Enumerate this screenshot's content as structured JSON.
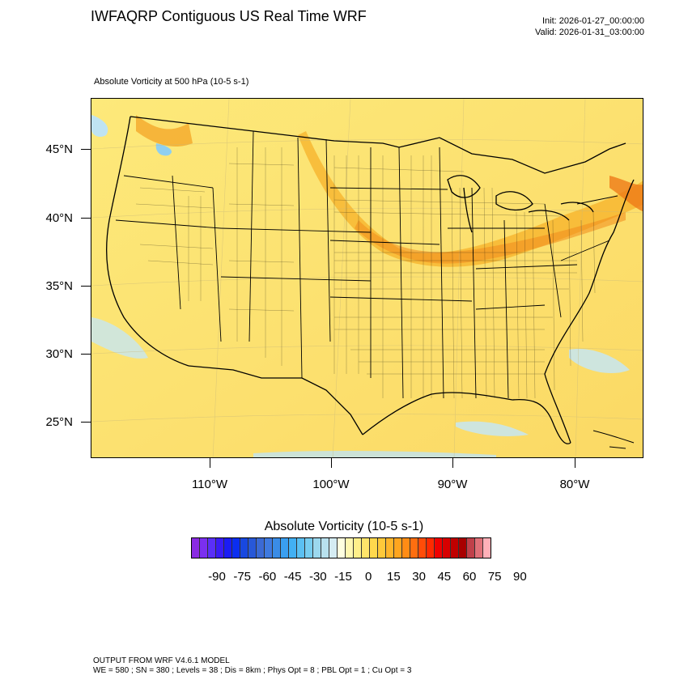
{
  "header": {
    "title": "IWFAQRP Contiguous US Real Time WRF",
    "init": "Init: 2026-01-27_00:00:00",
    "valid": "Valid: 2026-01-31_03:00:00",
    "field": "Absolute Vorticity at 500 hPa   (10-5 s-1)"
  },
  "map": {
    "lat_labels": [
      "45°N",
      "40°N",
      "35°N",
      "30°N",
      "25°N"
    ],
    "lon_labels": [
      "110°W",
      "100°W",
      "90°W",
      "80°W"
    ],
    "background_color": "#fde97a",
    "max_band_color": "#f5a51c",
    "land_border_color": "#000000"
  },
  "colorbar": {
    "title": "Absolute Vorticity  (10-5 s-1)",
    "labels": [
      "-90",
      "-75",
      "-60",
      "-45",
      "-30",
      "-15",
      "0",
      "15",
      "30",
      "45",
      "60",
      "75",
      "90"
    ],
    "colors": [
      "#8a2be2",
      "#7b2ff0",
      "#5a2ff8",
      "#3a1cf5",
      "#1b1cf5",
      "#0b2ef0",
      "#1848e0",
      "#2858d8",
      "#3b6ad4",
      "#3f7ae0",
      "#3a8ce6",
      "#3a9ff0",
      "#42b0f3",
      "#5bc0f2",
      "#77cdf0",
      "#9cd8ee",
      "#b8e1ee",
      "#d5ecf3",
      "#ffffe0",
      "#fff7b0",
      "#ffef8a",
      "#ffe46a",
      "#ffd84d",
      "#ffc93a",
      "#ffb52a",
      "#ffa51f",
      "#ff8c15",
      "#ff6e10",
      "#ff4c08",
      "#ff2a00",
      "#f00000",
      "#d80000",
      "#c00000",
      "#a80000",
      "#c0404a",
      "#e07078",
      "#ffb0b8"
    ]
  },
  "footer": {
    "line1": "OUTPUT FROM WRF V4.6.1 MODEL",
    "line2": "WE = 580 ; SN = 380 ; Levels = 38 ; Dis = 8km ; Phys Opt = 8 ; PBL Opt = 1 ; Cu Opt = 3"
  }
}
